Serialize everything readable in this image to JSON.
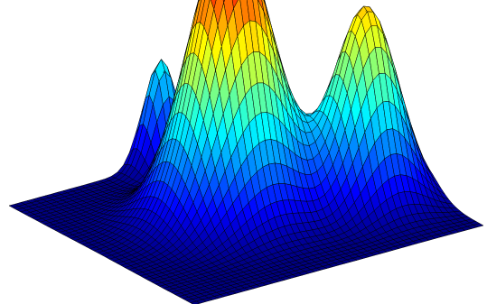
{
  "chart_data": {
    "type": "surface",
    "title": "",
    "xlabel": "",
    "ylabel": "",
    "zlabel": "",
    "axes_visible": false,
    "grid": false,
    "legend": "none",
    "colormap": "jet",
    "shading": "faceted",
    "edge_color": "#000000",
    "background": "#ffffff",
    "x_domain": [
      0,
      1
    ],
    "y_domain": [
      0,
      1
    ],
    "mesh_resolution": [
      49,
      49
    ],
    "z_range": [
      0,
      1
    ],
    "gaussian_peaks": [
      {
        "name": "",
        "x": 0.46,
        "y": 0.52,
        "height": 1.0,
        "spread": 0.125
      },
      {
        "name": "",
        "x": 0.82,
        "y": 0.35,
        "height": 0.68,
        "spread": 0.095
      },
      {
        "name": "",
        "x": 0.5,
        "y": 0.96,
        "height": 0.38,
        "spread": 0.05
      }
    ]
  }
}
